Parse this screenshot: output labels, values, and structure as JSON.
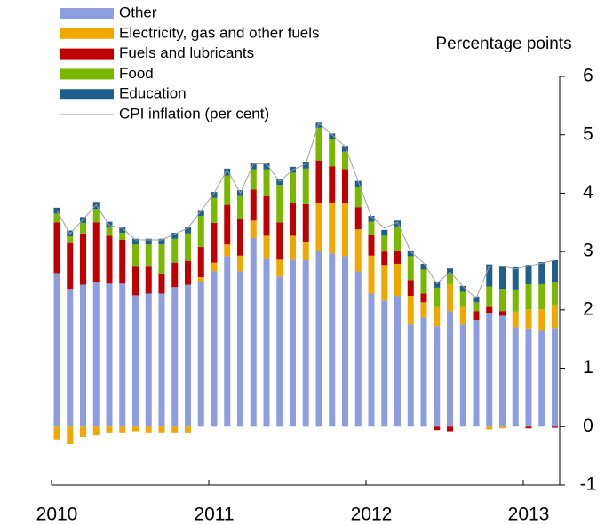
{
  "chart_data": {
    "type": "stacked-bar-line",
    "y_label": "Percentage points",
    "categories": [
      "2010",
      null,
      null,
      null,
      null,
      null,
      null,
      null,
      null,
      null,
      null,
      null,
      "2011",
      null,
      null,
      null,
      null,
      null,
      null,
      null,
      null,
      null,
      null,
      null,
      "2012",
      null,
      null,
      null,
      null,
      null,
      null,
      null,
      null,
      null,
      null,
      null,
      "2013",
      null,
      null
    ],
    "ylim": [
      -1,
      6
    ],
    "yticks": [
      -1,
      0,
      1,
      2,
      3,
      4,
      5,
      6
    ],
    "series": [
      {
        "name": "Other",
        "color": "#8c9de0",
        "values": [
          2.63,
          2.36,
          2.43,
          2.48,
          2.45,
          2.45,
          2.25,
          2.28,
          2.28,
          2.39,
          2.43,
          2.48,
          2.66,
          2.92,
          2.66,
          3.23,
          2.89,
          2.57,
          2.86,
          2.85,
          3.01,
          2.97,
          2.92,
          2.66,
          2.28,
          2.16,
          2.24,
          1.75,
          1.87,
          1.72,
          1.98,
          1.75,
          1.83,
          1.95,
          1.9,
          1.7,
          1.68,
          1.64,
          1.69
        ]
      },
      {
        "name": "Electricity, gas and other fuels",
        "color": "#f0a800",
        "values": [
          -0.22,
          -0.3,
          -0.18,
          -0.15,
          -0.1,
          -0.1,
          -0.08,
          -0.1,
          -0.1,
          -0.1,
          -0.1,
          0.08,
          0.15,
          0.2,
          0.27,
          0.3,
          0.38,
          0.29,
          0.41,
          0.32,
          0.82,
          0.87,
          0.91,
          0.72,
          0.65,
          0.61,
          0.55,
          0.49,
          0.26,
          0.33,
          0.46,
          0.3,
          0,
          -0.05,
          -0.03,
          0.27,
          0.33,
          0.37,
          0.4
        ]
      },
      {
        "name": "Fuels and lubricants",
        "color": "#c00000",
        "values": [
          0.87,
          0.8,
          0.88,
          1.02,
          0.82,
          0.75,
          0.49,
          0.46,
          0.34,
          0.42,
          0.41,
          0.52,
          0.68,
          0.68,
          0.64,
          0.53,
          0.68,
          0.64,
          0.56,
          0.64,
          0.73,
          0.62,
          0.58,
          0.38,
          0.35,
          0.23,
          0.23,
          0.27,
          0.15,
          -0.06,
          -0.08,
          0,
          0.15,
          0.1,
          0.08,
          0,
          -0.03,
          0,
          -0.02
        ]
      },
      {
        "name": "Food",
        "color": "#7ab800",
        "values": [
          0.15,
          0.1,
          0.18,
          0.23,
          0.14,
          0.12,
          0.38,
          0.38,
          0.5,
          0.41,
          0.47,
          0.53,
          0.43,
          0.5,
          0.38,
          0.35,
          0.46,
          0.64,
          0.52,
          0.61,
          0.56,
          0.46,
          0.3,
          0.35,
          0.23,
          0.27,
          0.41,
          0.41,
          0.41,
          0.33,
          0.17,
          0.26,
          0.15,
          0.35,
          0.38,
          0.38,
          0.43,
          0.43,
          0.38
        ]
      },
      {
        "name": "Education",
        "color": "#1f5f8b",
        "values": [
          0.1,
          0.1,
          0.1,
          0.12,
          0.1,
          0.1,
          0.1,
          0.1,
          0.1,
          0.1,
          0.1,
          0.1,
          0.1,
          0.12,
          0.1,
          0.1,
          0.1,
          0.1,
          0.1,
          0.12,
          0.1,
          0.1,
          0.1,
          0.1,
          0.1,
          0.1,
          0.1,
          0.1,
          0.1,
          0.1,
          0.1,
          0.1,
          0.1,
          0.38,
          0.38,
          0.38,
          0.33,
          0.38,
          0.38
        ]
      },
      {
        "name": "CPI inflation (per cent)",
        "color": "#a0a0a0",
        "type": "line",
        "values": [
          3.7,
          3.3,
          3.55,
          3.8,
          3.45,
          3.4,
          3.2,
          3.2,
          3.2,
          3.3,
          3.4,
          3.7,
          4.0,
          4.4,
          4.0,
          4.5,
          4.5,
          4.2,
          4.4,
          4.5,
          5.2,
          5.0,
          4.8,
          4.2,
          3.6,
          3.4,
          3.5,
          3.0,
          2.8,
          2.45,
          2.65,
          2.4,
          2.2,
          2.75,
          2.75,
          2.7,
          2.75,
          2.8,
          2.85
        ]
      }
    ]
  }
}
